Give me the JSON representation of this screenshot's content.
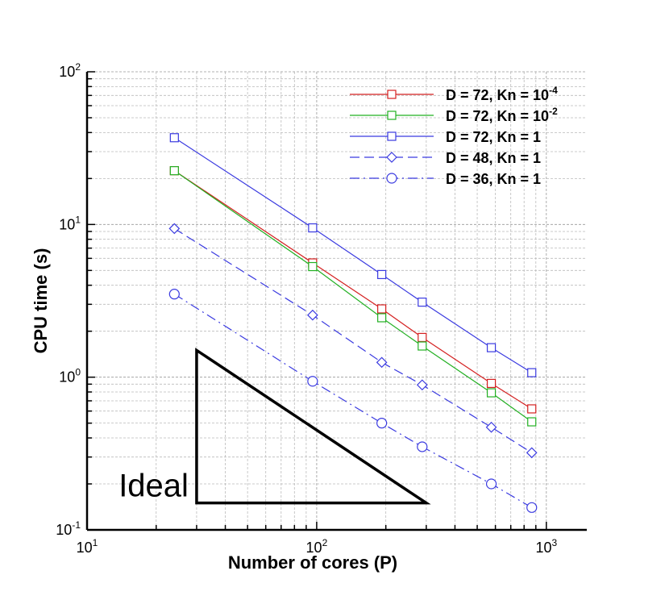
{
  "chart_data": {
    "type": "line",
    "xscale": "log",
    "yscale": "log",
    "xlim": [
      10,
      1500
    ],
    "ylim": [
      0.1,
      100
    ],
    "xlabel": "Number of cores (P)",
    "ylabel": "CPU time (s)",
    "grid": true,
    "legend_position": "top-right",
    "x_ticks": [
      {
        "base": "10",
        "exp": "1",
        "value": 10
      },
      {
        "base": "10",
        "exp": "2",
        "value": 100
      },
      {
        "base": "10",
        "exp": "3",
        "value": 1000
      }
    ],
    "y_ticks": [
      {
        "base": "10",
        "exp": "-1",
        "value": 0.1
      },
      {
        "base": "10",
        "exp": "0",
        "value": 1
      },
      {
        "base": "10",
        "exp": "1",
        "value": 10
      },
      {
        "base": "10",
        "exp": "2",
        "value": 100
      }
    ],
    "series": [
      {
        "label_main": "D = 72, Kn = 10",
        "label_sup": "-4",
        "color": "#d42020",
        "dash": "solid",
        "marker": "square",
        "x": [
          24,
          96,
          192,
          288,
          576,
          864
        ],
        "y": [
          22.5,
          5.6,
          2.8,
          1.82,
          0.91,
          0.62
        ]
      },
      {
        "label_main": "D = 72, Kn = 10",
        "label_sup": "-2",
        "color": "#22b022",
        "dash": "solid",
        "marker": "square",
        "x": [
          24,
          96,
          192,
          288,
          576,
          864
        ],
        "y": [
          22.5,
          5.3,
          2.45,
          1.6,
          0.79,
          0.51
        ]
      },
      {
        "label_main": "D = 72, Kn = 1",
        "label_sup": "",
        "color": "#3a3ae0",
        "dash": "solid",
        "marker": "square",
        "x": [
          24,
          96,
          192,
          288,
          576,
          864
        ],
        "y": [
          37,
          9.5,
          4.7,
          3.1,
          1.56,
          1.07
        ]
      },
      {
        "label_main": "D = 48, Kn = 1",
        "label_sup": "",
        "color": "#3a3ae0",
        "dash": "dashed",
        "marker": "diamond",
        "x": [
          24,
          96,
          192,
          288,
          576,
          864
        ],
        "y": [
          9.4,
          2.55,
          1.25,
          0.89,
          0.47,
          0.32
        ]
      },
      {
        "label_main": "D = 36, Kn = 1",
        "label_sup": "",
        "color": "#3a3ae0",
        "dash": "dashdot",
        "marker": "circle",
        "x": [
          24,
          96,
          192,
          288,
          576,
          864
        ],
        "y": [
          3.5,
          0.94,
          0.5,
          0.35,
          0.2,
          0.14
        ]
      }
    ],
    "ideal_triangle": {
      "label": "Ideal",
      "points": [
        [
          30,
          1.5
        ],
        [
          30,
          0.15
        ],
        [
          300,
          0.15
        ]
      ]
    }
  }
}
